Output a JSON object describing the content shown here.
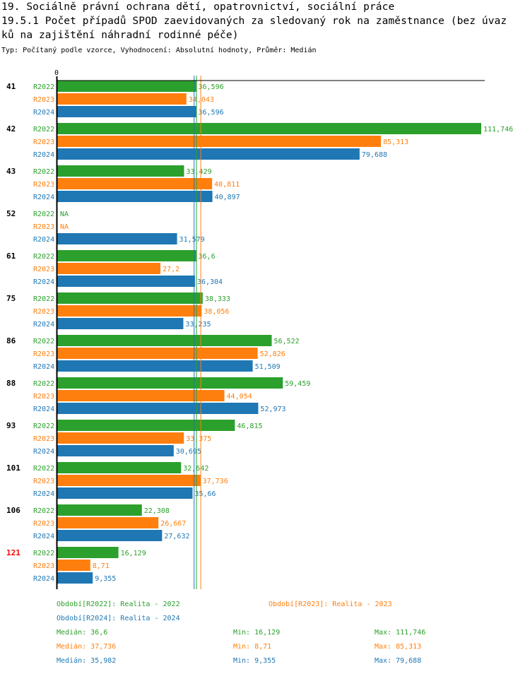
{
  "header": {
    "title_line1": "19. Sociálně právní ochrana dětí, opatrovnictví, sociální práce",
    "title_line2": "19.5.1 Počet případů SPOD zaevidovaných za sledovaný rok na zaměstnance (bez úvaz",
    "title_line3": "ků na zajištění náhradní rodinné péče)",
    "subtitle": "Typ: Počítaný podle vzorce, Vyhodnocení: Absolutní hodnoty, Průměr: Medián"
  },
  "colors": {
    "R2022": "#2ca02c",
    "R2023": "#ff7f0e",
    "R2024": "#1f77b4",
    "group_default": "#000000",
    "group_highlight": "#ff0000"
  },
  "chart_data": {
    "type": "bar",
    "orientation": "horizontal",
    "title": "19.5.1 Počet případů SPOD zaevidovaných za sledovaný rok na zaměstnance (bez úvazků na zajištění náhradní rodinné péče)",
    "xlabel": "",
    "ylabel": "",
    "x_tick_labels": [
      "0"
    ],
    "xlim": [
      0,
      111.746
    ],
    "grid": false,
    "series_names": [
      "R2022",
      "R2023",
      "R2024"
    ],
    "categories": [
      "41",
      "42",
      "43",
      "52",
      "61",
      "75",
      "86",
      "88",
      "93",
      "101",
      "106",
      "121"
    ],
    "highlighted_category": "121",
    "series": [
      {
        "name": "R2022",
        "values": [
          36.596,
          111.746,
          33.429,
          null,
          36.6,
          38.333,
          56.522,
          59.459,
          46.815,
          32.642,
          22.308,
          16.129
        ],
        "labels": [
          "36,596",
          "111,746",
          "33,429",
          "NA",
          "36,6",
          "38,333",
          "56,522",
          "59,459",
          "46,815",
          "32,642",
          "22,308",
          "16,129"
        ]
      },
      {
        "name": "R2023",
        "values": [
          34.043,
          85.313,
          40.811,
          null,
          27.2,
          38.056,
          52.826,
          44.054,
          33.375,
          37.736,
          26.667,
          8.71
        ],
        "labels": [
          "34,043",
          "85,313",
          "40,811",
          "NA",
          "27,2",
          "38,056",
          "52,826",
          "44,054",
          "33,375",
          "37,736",
          "26,667",
          "8,71"
        ]
      },
      {
        "name": "R2024",
        "values": [
          36.596,
          79.688,
          40.897,
          31.579,
          36.304,
          33.235,
          51.509,
          52.973,
          30.695,
          35.66,
          27.632,
          9.355
        ],
        "labels": [
          "36,596",
          "79,688",
          "40,897",
          "31,579",
          "36,304",
          "33,235",
          "51,509",
          "52,973",
          "30,695",
          "35,66",
          "27,632",
          "9,355"
        ]
      }
    ],
    "median_lines": [
      {
        "series": "R2022",
        "value": 36.6
      },
      {
        "series": "R2023",
        "value": 37.736
      },
      {
        "series": "R2024",
        "value": 35.982
      }
    ]
  },
  "legend": {
    "periods": [
      {
        "series": "R2022",
        "text": "Období[R2022]: Realita - 2022"
      },
      {
        "series": "R2023",
        "text": "Období[R2023]: Realita - 2023"
      },
      {
        "series": "R2024",
        "text": "Období[R2024]: Realita - 2024"
      }
    ],
    "stats": [
      {
        "series": "R2022",
        "median": "Medián: 36,6",
        "min": "Min: 16,129",
        "max": "Max: 111,746"
      },
      {
        "series": "R2023",
        "median": "Medián: 37,736",
        "min": "Min: 8,71",
        "max": "Max: 85,313"
      },
      {
        "series": "R2024",
        "median": "Medián: 35,982",
        "min": "Min: 9,355",
        "max": "Max: 79,688"
      }
    ]
  }
}
